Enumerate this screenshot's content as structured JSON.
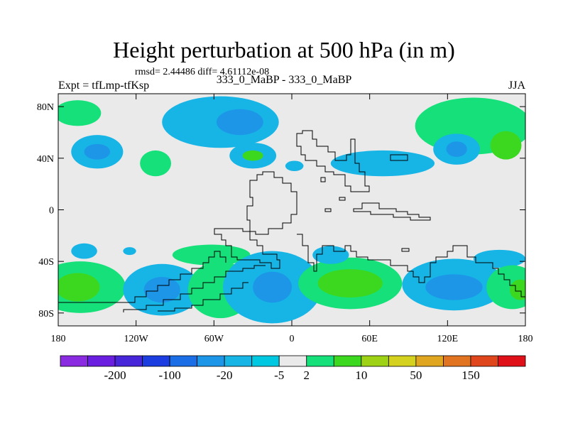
{
  "chart_data": {
    "type": "heatmap",
    "title": "Height perturbation at 500 hPa (in m)",
    "stat_text": "rmsd= 2.44486 diff= 4.61112e-08",
    "left_label": "Expt = tfLmp-tfKsp",
    "center_label": "333_0_MaBP - 333_0_MaBP",
    "right_label": "JJA",
    "xlim": [
      -180,
      180
    ],
    "ylim": [
      -90,
      90
    ],
    "x_ticks": [
      {
        "value": -180,
        "label": "180"
      },
      {
        "value": -120,
        "label": "120W"
      },
      {
        "value": -60,
        "label": "60W"
      },
      {
        "value": 0,
        "label": "0"
      },
      {
        "value": 60,
        "label": "60E"
      },
      {
        "value": 120,
        "label": "120E"
      },
      {
        "value": 180,
        "label": "180"
      }
    ],
    "y_ticks": [
      {
        "value": 80,
        "label": "80N"
      },
      {
        "value": 40,
        "label": "40N"
      },
      {
        "value": 0,
        "label": "0"
      },
      {
        "value": -40,
        "label": "40S"
      },
      {
        "value": -80,
        "label": "80S"
      }
    ],
    "colorbar": {
      "colors": [
        "#8a2be2",
        "#6a1ee0",
        "#4626d8",
        "#1c3ee0",
        "#1b6ee6",
        "#1d96e8",
        "#17b4e6",
        "#00c8e0",
        "#eaeaea",
        "#16e07a",
        "#3cd820",
        "#9ed214",
        "#d4d21e",
        "#e0a620",
        "#e07420",
        "#e0461c",
        "#e01018"
      ],
      "labels": [
        "-200",
        "-100",
        "-20",
        "-5",
        "2",
        "10",
        "50",
        "150"
      ],
      "label_after_index": [
        1,
        3,
        5,
        7,
        8,
        10,
        12,
        14
      ]
    },
    "blobs": [
      {
        "lon": -165,
        "lat": 75,
        "rx": 18,
        "ry": 10,
        "color": "#16e07a"
      },
      {
        "lon": -150,
        "lat": 45,
        "rx": 20,
        "ry": 13,
        "color": "#17b4e6"
      },
      {
        "lon": -150,
        "lat": 45,
        "rx": 10,
        "ry": 6,
        "color": "#1d96e8"
      },
      {
        "lon": -105,
        "lat": 36,
        "rx": 12,
        "ry": 10,
        "color": "#16e07a"
      },
      {
        "lon": -55,
        "lat": 68,
        "rx": 45,
        "ry": 20,
        "color": "#17b4e6"
      },
      {
        "lon": -40,
        "lat": 68,
        "rx": 18,
        "ry": 10,
        "color": "#1d96e8"
      },
      {
        "lon": -30,
        "lat": 42,
        "rx": 18,
        "ry": 10,
        "color": "#17b4e6"
      },
      {
        "lon": -30,
        "lat": 42,
        "rx": 8,
        "ry": 4,
        "color": "#3cd820"
      },
      {
        "lon": 2,
        "lat": 34,
        "rx": 7,
        "ry": 4,
        "color": "#17b4e6"
      },
      {
        "lon": 70,
        "lat": 36,
        "rx": 40,
        "ry": 10,
        "color": "#17b4e6"
      },
      {
        "lon": 140,
        "lat": 65,
        "rx": 45,
        "ry": 22,
        "color": "#16e07a"
      },
      {
        "lon": 127,
        "lat": 47,
        "rx": 18,
        "ry": 12,
        "color": "#17b4e6"
      },
      {
        "lon": 127,
        "lat": 47,
        "rx": 8,
        "ry": 6,
        "color": "#1d96e8"
      },
      {
        "lon": 165,
        "lat": 50,
        "rx": 12,
        "ry": 11,
        "color": "#3cd820"
      },
      {
        "lon": -160,
        "lat": -32,
        "rx": 10,
        "ry": 6,
        "color": "#17b4e6"
      },
      {
        "lon": -125,
        "lat": -32,
        "rx": 5,
        "ry": 3,
        "color": "#17b4e6"
      },
      {
        "lon": -62,
        "lat": -35,
        "rx": 30,
        "ry": 8,
        "color": "#16e07a"
      },
      {
        "lon": -163,
        "lat": -60,
        "rx": 35,
        "ry": 20,
        "color": "#16e07a"
      },
      {
        "lon": -165,
        "lat": -60,
        "rx": 17,
        "ry": 11,
        "color": "#3cd820"
      },
      {
        "lon": -100,
        "lat": -62,
        "rx": 30,
        "ry": 20,
        "color": "#17b4e6"
      },
      {
        "lon": -100,
        "lat": -62,
        "rx": 14,
        "ry": 10,
        "color": "#1d96e8"
      },
      {
        "lon": -55,
        "lat": -62,
        "rx": 25,
        "ry": 22,
        "color": "#16e07a"
      },
      {
        "lon": -15,
        "lat": -60,
        "rx": 38,
        "ry": 28,
        "color": "#17b4e6"
      },
      {
        "lon": -15,
        "lat": -60,
        "rx": 15,
        "ry": 12,
        "color": "#1d96e8"
      },
      {
        "lon": 45,
        "lat": -57,
        "rx": 40,
        "ry": 20,
        "color": "#16e07a"
      },
      {
        "lon": 45,
        "lat": -57,
        "rx": 25,
        "ry": 11,
        "color": "#3cd820"
      },
      {
        "lon": 30,
        "lat": -35,
        "rx": 14,
        "ry": 7,
        "color": "#17b4e6"
      },
      {
        "lon": 125,
        "lat": -58,
        "rx": 40,
        "ry": 20,
        "color": "#17b4e6"
      },
      {
        "lon": 125,
        "lat": -60,
        "rx": 22,
        "ry": 10,
        "color": "#1d96e8"
      },
      {
        "lon": 160,
        "lat": -38,
        "rx": 20,
        "ry": 7,
        "color": "#17b4e6"
      },
      {
        "lon": 170,
        "lat": -60,
        "rx": 20,
        "ry": 17,
        "color": "#16e07a"
      },
      {
        "lon": 176,
        "lat": -62,
        "rx": 8,
        "ry": 8,
        "color": "#3cd820"
      }
    ]
  }
}
